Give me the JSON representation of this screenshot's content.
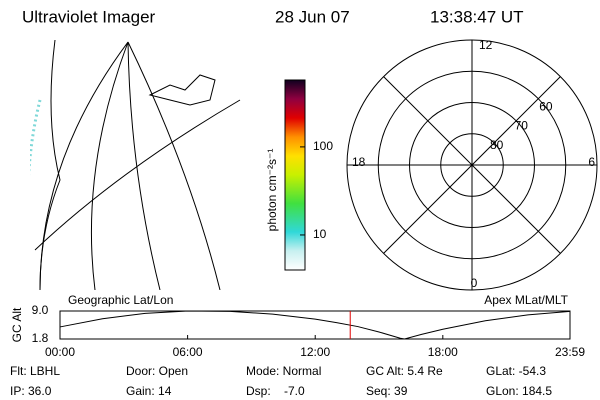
{
  "header": {
    "title": "Ultraviolet Imager",
    "date": "28 Jun 07",
    "time": "13:38:47 UT"
  },
  "colorbar": {
    "label": "photon cm⁻²s⁻¹",
    "scale": "log",
    "lim": [
      4,
      575
    ],
    "ticks": [
      10,
      100
    ]
  },
  "polar": {
    "lat_range": [
      50,
      90
    ],
    "rings": [
      80,
      70,
      60
    ],
    "mlt_labels": {
      "top": "12",
      "left": "18",
      "right": "6",
      "bottom": "0"
    }
  },
  "chart_data": {
    "type": "line",
    "ylabel": "GC Alt",
    "left_title": "Geographic Lat/Lon",
    "right_title": "Apex MLat/MLT",
    "x": [
      0,
      2,
      4,
      6,
      8,
      10,
      12,
      13,
      14,
      15,
      16,
      16.2,
      17,
      18,
      20,
      22,
      23.98
    ],
    "values": [
      4.9,
      7.0,
      8.4,
      9.0,
      8.9,
      8.2,
      6.9,
      6.0,
      5.0,
      3.6,
      2.0,
      1.8,
      3.0,
      4.3,
      6.5,
      8.0,
      8.9
    ],
    "color": "#000000",
    "marker": 13.646,
    "marker_color": "#e00000",
    "xlim": [
      0,
      23.98
    ],
    "xticks": [
      {
        "value": 0,
        "label": "00:00"
      },
      {
        "value": 6,
        "label": "06:00"
      },
      {
        "value": 12,
        "label": "12:00"
      },
      {
        "value": 18,
        "label": "18:00"
      },
      {
        "value": 23.98,
        "label": "23:59"
      }
    ],
    "ylim": [
      1.8,
      9.0
    ],
    "yticks": [
      {
        "value": 9.0,
        "label": "9.0"
      },
      {
        "value": 1.8,
        "label": "1.8"
      }
    ]
  },
  "footer": [
    [
      "Flt: LBHL",
      "Door: Open",
      "Mode: Normal",
      "GC Alt: 5.4 Re",
      "GLat: -54.3"
    ],
    [
      "IP: 36.0",
      "Gain: 14",
      "Dsp:    -7.0",
      "Seq: 39",
      "GLon: 184.5"
    ]
  ]
}
